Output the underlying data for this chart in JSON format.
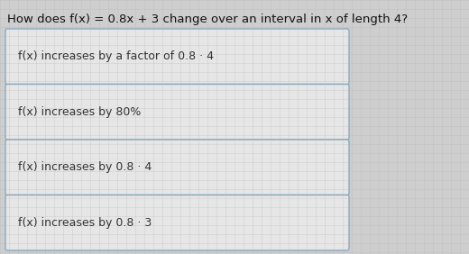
{
  "title": "How does f(x) = 0.8x + 3 change over an interval in x of length 4?",
  "title_fontsize": 9.5,
  "options": [
    "f(x) increases by a factor of 0.8 · 4",
    "f(x) increases by 80%",
    "f(x) increases by 0.8 · 4",
    "f(x) increases by 0.8 · 3"
  ],
  "option_fontsize": 9,
  "background_color": "#cecece",
  "box_face_color": "#e6e6e6",
  "box_edge_color": "#8aaabf",
  "text_color": "#333333",
  "title_color": "#111111",
  "grid_color": "#b8b8b8"
}
